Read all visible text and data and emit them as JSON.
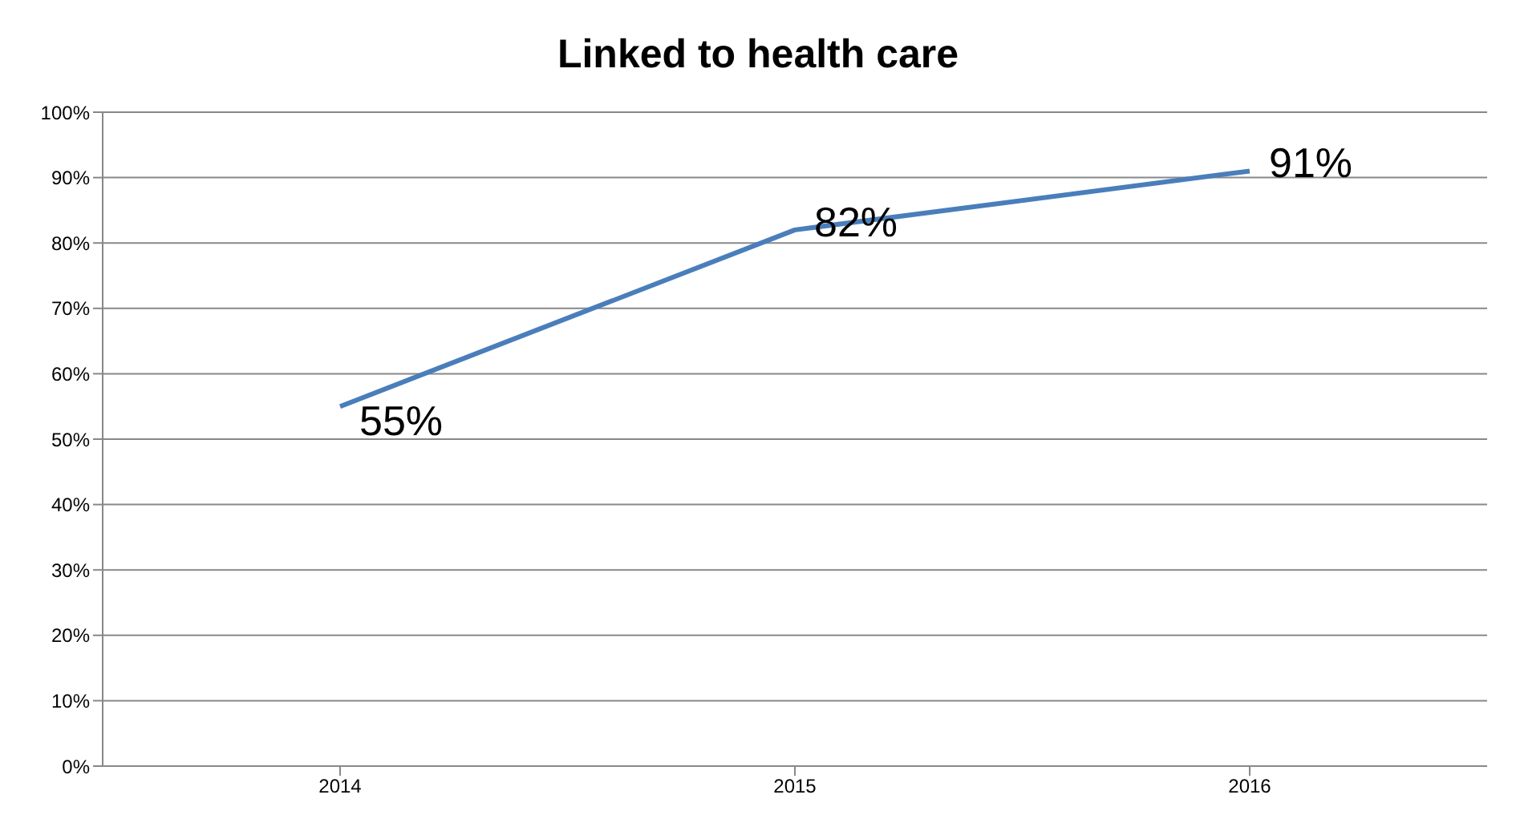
{
  "chart_data": {
    "type": "line",
    "title": "Linked to health care",
    "categories": [
      "2014",
      "2015",
      "2016"
    ],
    "series": [
      {
        "color": "#4a7ebb",
        "values": [
          55,
          82,
          91
        ],
        "value_labels": [
          "55%",
          "82%",
          "91%"
        ]
      }
    ],
    "ylim": [
      0,
      100
    ],
    "yticks": [
      {
        "value": 0,
        "label": "0%"
      },
      {
        "value": 10,
        "label": "10%"
      },
      {
        "value": 20,
        "label": "20%"
      },
      {
        "value": 30,
        "label": "30%"
      },
      {
        "value": 40,
        "label": "40%"
      },
      {
        "value": 50,
        "label": "50%"
      },
      {
        "value": 60,
        "label": "60%"
      },
      {
        "value": 70,
        "label": "70%"
      },
      {
        "value": 80,
        "label": "80%"
      },
      {
        "value": 90,
        "label": "90%"
      },
      {
        "value": 100,
        "label": "100%"
      }
    ],
    "grid": "y",
    "legend": false,
    "marker": "none",
    "line_style": "solid"
  }
}
